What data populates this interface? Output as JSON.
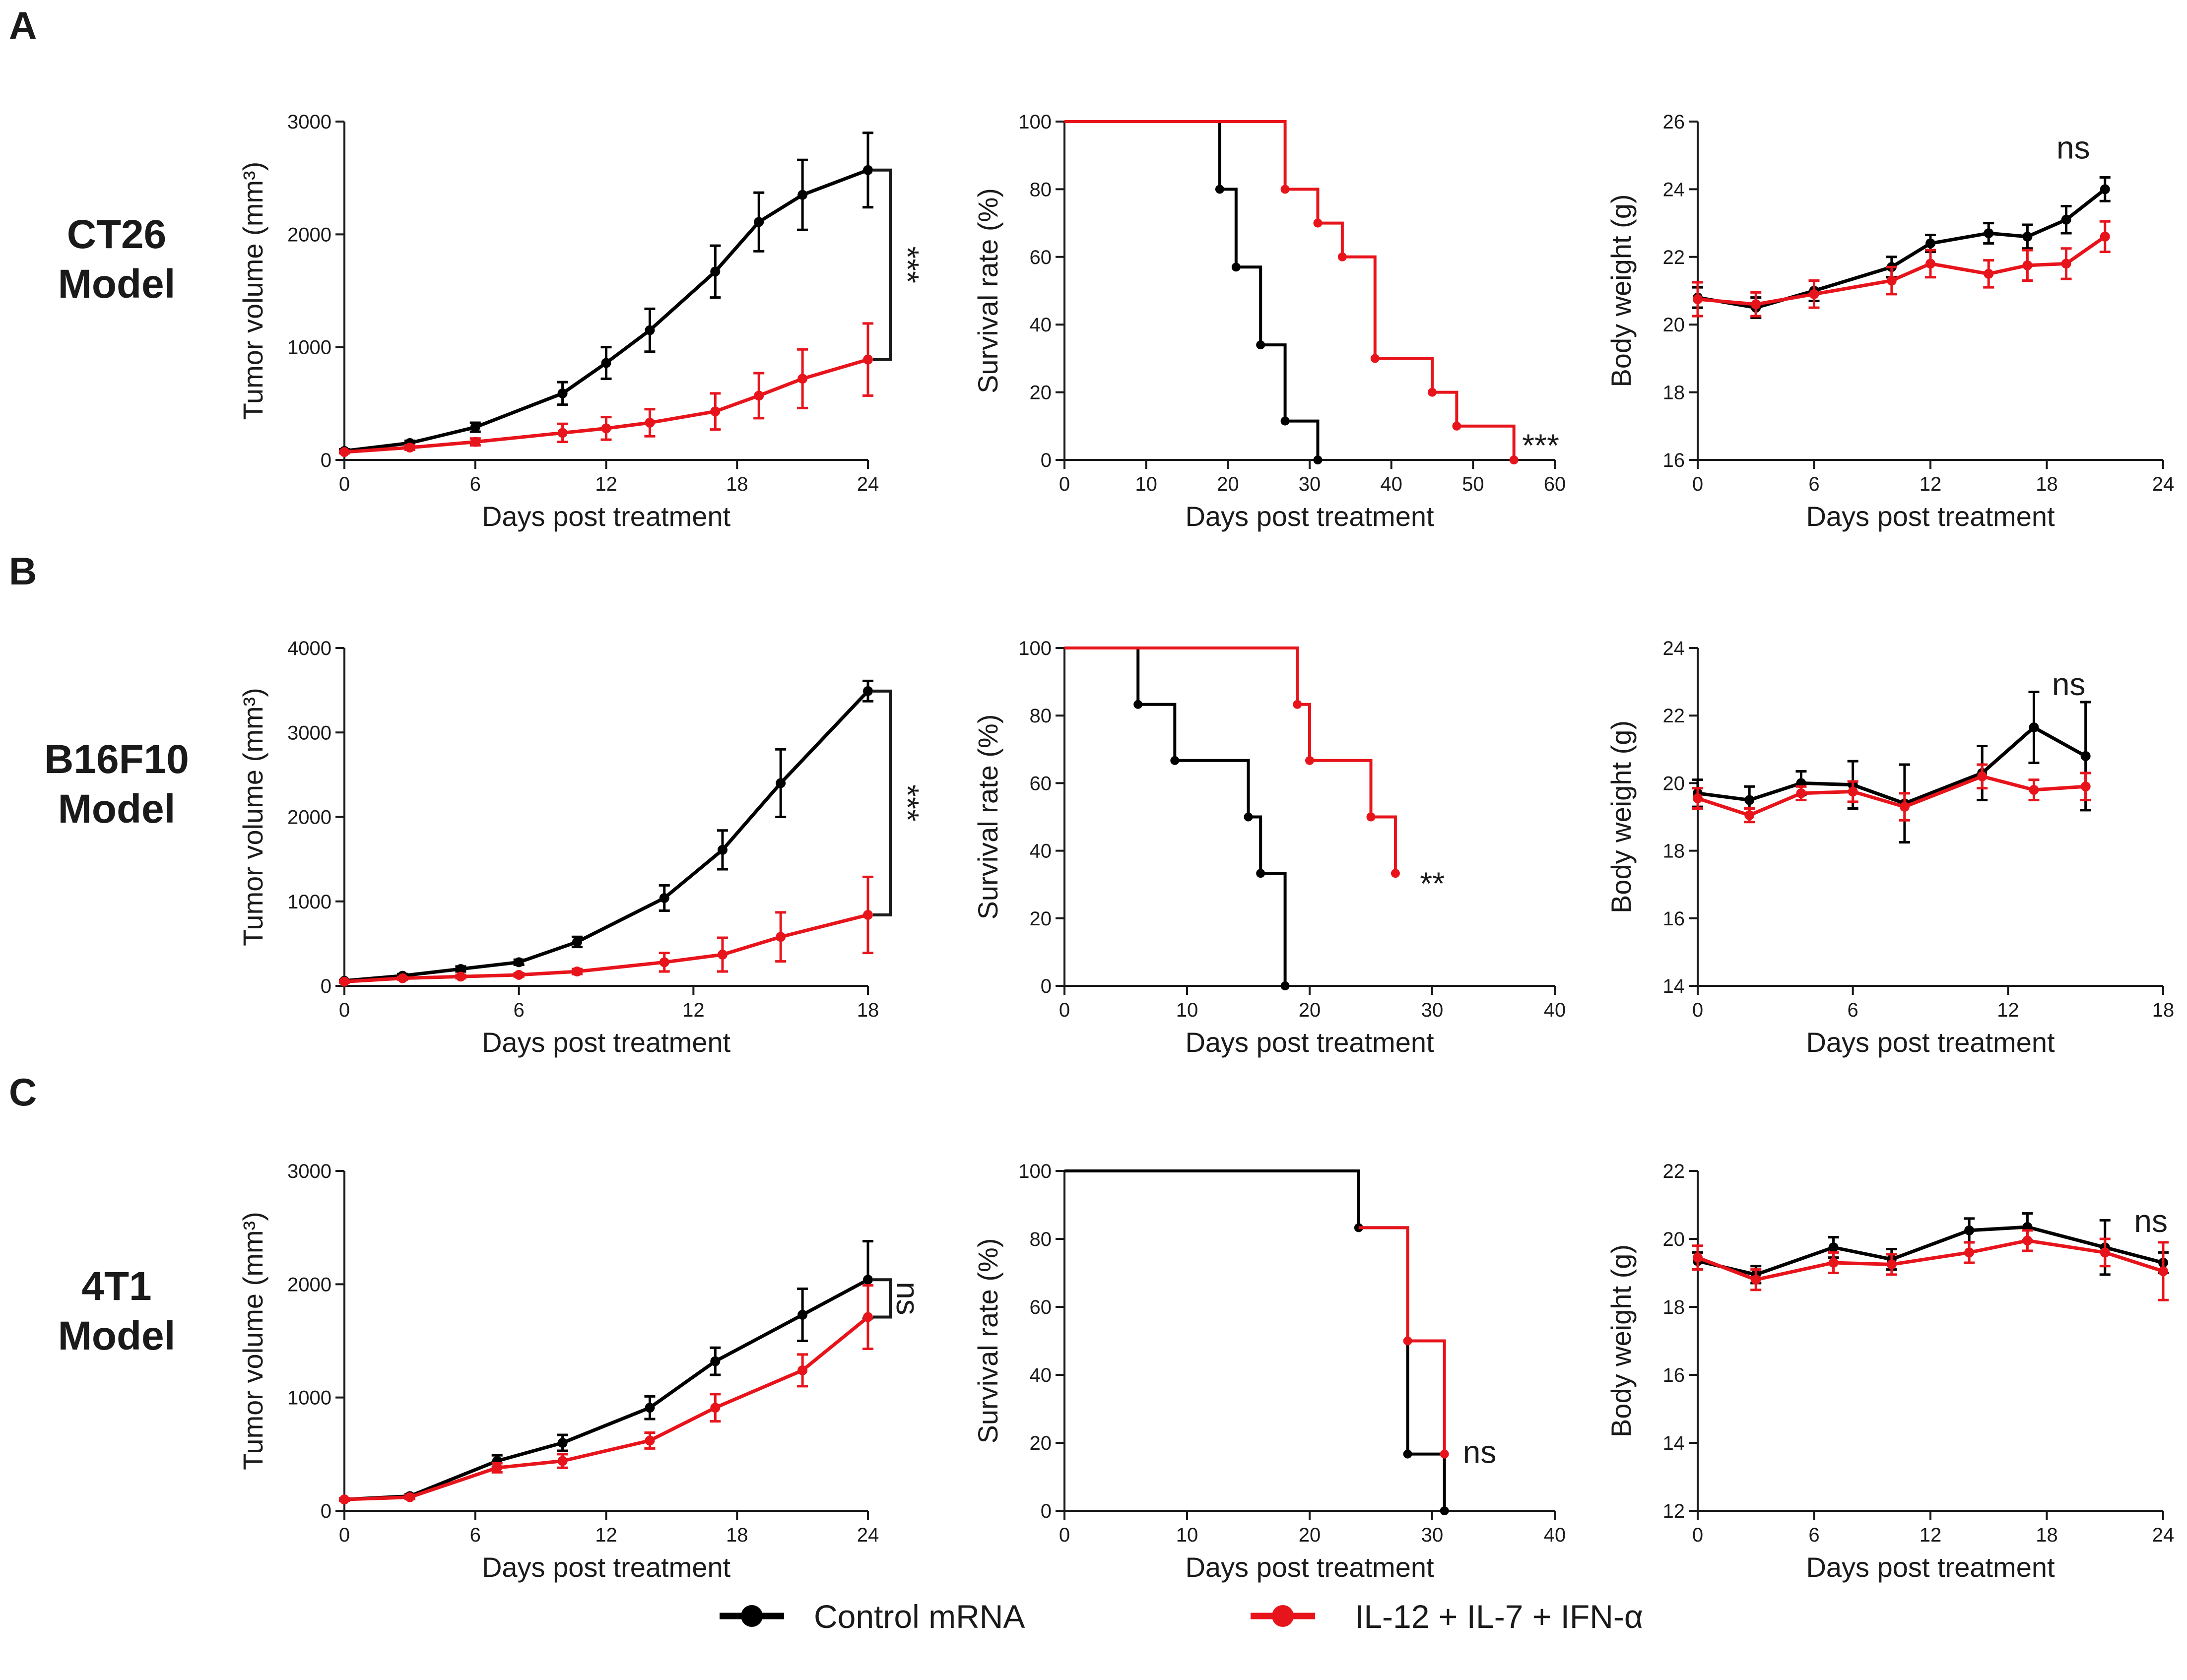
{
  "figure": {
    "panel_letters": [
      "A",
      "B",
      "C"
    ],
    "row_labels": [
      {
        "line1": "CT26",
        "line2": "Model"
      },
      {
        "line1": "B16F10",
        "line2": "Model"
      },
      {
        "line1": "4T1",
        "line2": "Model"
      }
    ],
    "legend": [
      {
        "label": "Control mRNA",
        "color": "#000000"
      },
      {
        "label": "IL-12 + IL-7 + IFN-α",
        "color": "#e8141b"
      }
    ]
  },
  "chart_data": [
    {
      "id": "A-tumor",
      "type": "line",
      "row": 0,
      "col": 0,
      "xlabel": "Days post treatment",
      "ylabel": "Tumor volume (mm³)",
      "xlim": [
        0,
        24
      ],
      "ylim": [
        0,
        3000
      ],
      "xticks": [
        0,
        6,
        12,
        18,
        24
      ],
      "yticks": [
        0,
        1000,
        2000,
        3000
      ],
      "series": [
        {
          "name": "Control mRNA",
          "color": "#000000",
          "x": [
            0,
            3,
            6,
            10,
            12,
            14,
            17,
            19,
            21,
            24
          ],
          "y": [
            80,
            150,
            290,
            590,
            860,
            1150,
            1670,
            2110,
            2350,
            2570
          ],
          "err": [
            15,
            20,
            40,
            100,
            140,
            190,
            230,
            260,
            310,
            330
          ]
        },
        {
          "name": "IL-12 + IL-7 + IFN-α",
          "color": "#e8141b",
          "x": [
            0,
            3,
            6,
            10,
            12,
            14,
            17,
            19,
            21,
            24
          ],
          "y": [
            70,
            110,
            160,
            240,
            280,
            330,
            430,
            570,
            720,
            890
          ],
          "err": [
            10,
            20,
            30,
            80,
            100,
            120,
            160,
            200,
            260,
            320
          ]
        }
      ],
      "annotation": {
        "text": "***",
        "kind": "bracket",
        "x": 24,
        "y1": 2570,
        "y2": 890
      }
    },
    {
      "id": "A-survival",
      "type": "step",
      "row": 0,
      "col": 1,
      "xlabel": "Days post treatment",
      "ylabel": "Survival rate (%)",
      "xlim": [
        0,
        60
      ],
      "ylim": [
        0,
        100
      ],
      "xticks": [
        0,
        10,
        20,
        30,
        40,
        50,
        60
      ],
      "yticks": [
        0,
        20,
        40,
        60,
        80,
        100
      ],
      "series": [
        {
          "name": "Control mRNA",
          "color": "#000000",
          "x": [
            0,
            19,
            21,
            24,
            27,
            31
          ],
          "y": [
            100,
            80,
            57,
            34,
            11.5,
            0
          ]
        },
        {
          "name": "IL-12 + IL-7 + IFN-α",
          "color": "#e8141b",
          "x": [
            0,
            27,
            31,
            34,
            38,
            45,
            48,
            55
          ],
          "y": [
            100,
            80,
            70,
            60,
            30,
            20,
            10,
            0
          ]
        }
      ],
      "annotation": {
        "text": "***",
        "kind": "text",
        "x": 56,
        "y": 4
      }
    },
    {
      "id": "A-weight",
      "type": "line",
      "row": 0,
      "col": 2,
      "xlabel": "Days post treatment",
      "ylabel": "Body weight (g)",
      "xlim": [
        0,
        24
      ],
      "ylim": [
        16,
        26
      ],
      "xticks": [
        0,
        6,
        12,
        18,
        24
      ],
      "yticks": [
        16,
        18,
        20,
        22,
        24,
        26
      ],
      "series": [
        {
          "name": "Control mRNA",
          "color": "#000000",
          "x": [
            0,
            3,
            6,
            10,
            12,
            15,
            17,
            19,
            21
          ],
          "y": [
            20.8,
            20.5,
            21.0,
            21.7,
            22.4,
            22.7,
            22.6,
            23.1,
            24.0
          ],
          "err": [
            0.3,
            0.3,
            0.3,
            0.3,
            0.25,
            0.3,
            0.35,
            0.4,
            0.35
          ]
        },
        {
          "name": "IL-12 + IL-7 + IFN-α",
          "color": "#e8141b",
          "x": [
            0,
            3,
            6,
            10,
            12,
            15,
            17,
            19,
            21
          ],
          "y": [
            20.75,
            20.6,
            20.9,
            21.3,
            21.8,
            21.5,
            21.75,
            21.8,
            22.6
          ],
          "err": [
            0.5,
            0.35,
            0.4,
            0.4,
            0.4,
            0.4,
            0.45,
            0.45,
            0.45
          ]
        }
      ],
      "annotation": {
        "text": "ns",
        "kind": "text",
        "x": 18.5,
        "y": 25.2
      }
    },
    {
      "id": "B-tumor",
      "type": "line",
      "row": 1,
      "col": 0,
      "xlabel": "Days post treatment",
      "ylabel": "Tumor volume (mm³)",
      "xlim": [
        0,
        18
      ],
      "ylim": [
        0,
        4000
      ],
      "xticks": [
        0,
        6,
        12,
        18
      ],
      "yticks": [
        0,
        1000,
        2000,
        3000,
        4000
      ],
      "series": [
        {
          "name": "Control mRNA",
          "color": "#000000",
          "x": [
            0,
            2,
            4,
            6,
            8,
            11,
            13,
            15,
            18
          ],
          "y": [
            60,
            120,
            200,
            280,
            520,
            1040,
            1610,
            2400,
            3490
          ],
          "err": [
            10,
            20,
            30,
            30,
            60,
            150,
            230,
            400,
            120
          ]
        },
        {
          "name": "IL-12 + IL-7 + IFN-α",
          "color": "#e8141b",
          "x": [
            0,
            2,
            4,
            6,
            8,
            11,
            13,
            15,
            18
          ],
          "y": [
            50,
            90,
            110,
            130,
            170,
            280,
            370,
            580,
            840
          ],
          "err": [
            10,
            15,
            20,
            20,
            30,
            110,
            200,
            290,
            450
          ]
        }
      ],
      "annotation": {
        "text": "***",
        "kind": "bracket",
        "x": 18,
        "y1": 3490,
        "y2": 840
      }
    },
    {
      "id": "B-survival",
      "type": "step",
      "row": 1,
      "col": 1,
      "xlabel": "Days post treatment",
      "ylabel": "Survival rate (%)",
      "xlim": [
        0,
        40
      ],
      "ylim": [
        0,
        100
      ],
      "xticks": [
        0,
        10,
        20,
        30,
        40
      ],
      "yticks": [
        0,
        20,
        40,
        60,
        80,
        100
      ],
      "series": [
        {
          "name": "Control mRNA",
          "color": "#000000",
          "x": [
            0,
            6,
            9,
            15,
            16,
            18
          ],
          "y": [
            100,
            83.3,
            66.7,
            50,
            33.3,
            0
          ]
        },
        {
          "name": "IL-12 + IL-7 + IFN-α",
          "color": "#e8141b",
          "x": [
            0,
            19,
            20,
            25,
            27
          ],
          "y": [
            100,
            83.3,
            66.7,
            50,
            33.3
          ]
        }
      ],
      "annotation": {
        "text": "**",
        "kind": "text",
        "x": 29,
        "y": 30
      }
    },
    {
      "id": "B-weight",
      "type": "line",
      "row": 1,
      "col": 2,
      "xlabel": "Days post treatment",
      "ylabel": "Body weight (g)",
      "xlim": [
        0,
        18
      ],
      "ylim": [
        14,
        24
      ],
      "xticks": [
        0,
        6,
        12,
        18
      ],
      "yticks": [
        14,
        16,
        18,
        20,
        22,
        24
      ],
      "series": [
        {
          "name": "Control mRNA",
          "color": "#000000",
          "x": [
            0,
            2,
            4,
            6,
            8,
            11,
            13,
            15
          ],
          "y": [
            19.7,
            19.5,
            20.0,
            19.95,
            19.4,
            20.3,
            21.65,
            20.8
          ],
          "err": [
            0.4,
            0.4,
            0.35,
            0.7,
            1.15,
            0.8,
            1.05,
            1.6
          ]
        },
        {
          "name": "IL-12 + IL-7 + IFN-α",
          "color": "#e8141b",
          "x": [
            0,
            2,
            4,
            6,
            8,
            11,
            13,
            15
          ],
          "y": [
            19.55,
            19.05,
            19.7,
            19.75,
            19.3,
            20.2,
            19.8,
            19.9
          ],
          "err": [
            0.3,
            0.2,
            0.2,
            0.3,
            0.4,
            0.35,
            0.3,
            0.4
          ]
        }
      ],
      "annotation": {
        "text": "ns",
        "kind": "text",
        "x": 13.7,
        "y": 22.9
      }
    },
    {
      "id": "C-tumor",
      "type": "line",
      "row": 2,
      "col": 0,
      "xlabel": "Days post treatment",
      "ylabel": "Tumor volume (mm³)",
      "xlim": [
        0,
        24
      ],
      "ylim": [
        0,
        3000
      ],
      "xticks": [
        0,
        6,
        12,
        18,
        24
      ],
      "yticks": [
        0,
        1000,
        2000,
        3000
      ],
      "series": [
        {
          "name": "Control mRNA",
          "color": "#000000",
          "x": [
            0,
            3,
            7,
            10,
            14,
            17,
            21,
            24
          ],
          "y": [
            100,
            130,
            440,
            600,
            910,
            1320,
            1730,
            2040
          ],
          "err": [
            10,
            15,
            50,
            70,
            100,
            120,
            230,
            340
          ]
        },
        {
          "name": "IL-12 + IL-7 + IFN-α",
          "color": "#e8141b",
          "x": [
            0,
            3,
            7,
            10,
            14,
            17,
            21,
            24
          ],
          "y": [
            100,
            120,
            380,
            440,
            620,
            910,
            1240,
            1710
          ],
          "err": [
            10,
            15,
            40,
            60,
            70,
            120,
            140,
            280
          ]
        }
      ],
      "annotation": {
        "text": "ns",
        "kind": "bracket",
        "x": 24,
        "y1": 2040,
        "y2": 1710
      }
    },
    {
      "id": "C-survival",
      "type": "step",
      "row": 2,
      "col": 1,
      "xlabel": "Days post treatment",
      "ylabel": "Survival rate (%)",
      "xlim": [
        0,
        40
      ],
      "ylim": [
        0,
        100
      ],
      "xticks": [
        0,
        10,
        20,
        30,
        40
      ],
      "yticks": [
        0,
        20,
        40,
        60,
        80,
        100
      ],
      "series": [
        {
          "name": "Control mRNA",
          "color": "#000000",
          "x": [
            0,
            24,
            28,
            31
          ],
          "y": [
            100,
            83.3,
            16.7,
            0
          ]
        },
        {
          "name": "IL-12 + IL-7 + IFN-α",
          "color": "#e8141b",
          "x": [
            28,
            31
          ],
          "y": [
            50,
            16.7
          ],
          "start": [
            24,
            83.3
          ]
        }
      ],
      "annotation": {
        "text": "ns",
        "kind": "text",
        "x": 32.5,
        "y": 17
      }
    },
    {
      "id": "C-weight",
      "type": "line",
      "row": 2,
      "col": 2,
      "xlabel": "Days post treatment",
      "ylabel": "Body weight (g)",
      "xlim": [
        0,
        24
      ],
      "ylim": [
        12,
        22
      ],
      "xticks": [
        0,
        6,
        12,
        18,
        24
      ],
      "yticks": [
        12,
        14,
        16,
        18,
        20,
        22
      ],
      "series": [
        {
          "name": "Control mRNA",
          "color": "#000000",
          "x": [
            0,
            3,
            7,
            10,
            14,
            17,
            21,
            24
          ],
          "y": [
            19.35,
            18.95,
            19.75,
            19.4,
            20.25,
            20.35,
            19.75,
            19.3
          ],
          "err": [
            0.25,
            0.25,
            0.3,
            0.3,
            0.35,
            0.4,
            0.8,
            0.3
          ]
        },
        {
          "name": "IL-12 + IL-7 + IFN-α",
          "color": "#e8141b",
          "x": [
            0,
            3,
            7,
            10,
            14,
            17,
            21,
            24
          ],
          "y": [
            19.45,
            18.8,
            19.3,
            19.25,
            19.6,
            19.95,
            19.6,
            19.05
          ],
          "err": [
            0.35,
            0.3,
            0.3,
            0.3,
            0.3,
            0.3,
            0.4,
            0.85
          ]
        }
      ],
      "annotation": {
        "text": "ns",
        "kind": "text",
        "x": 22.5,
        "y": 20.5
      }
    }
  ]
}
